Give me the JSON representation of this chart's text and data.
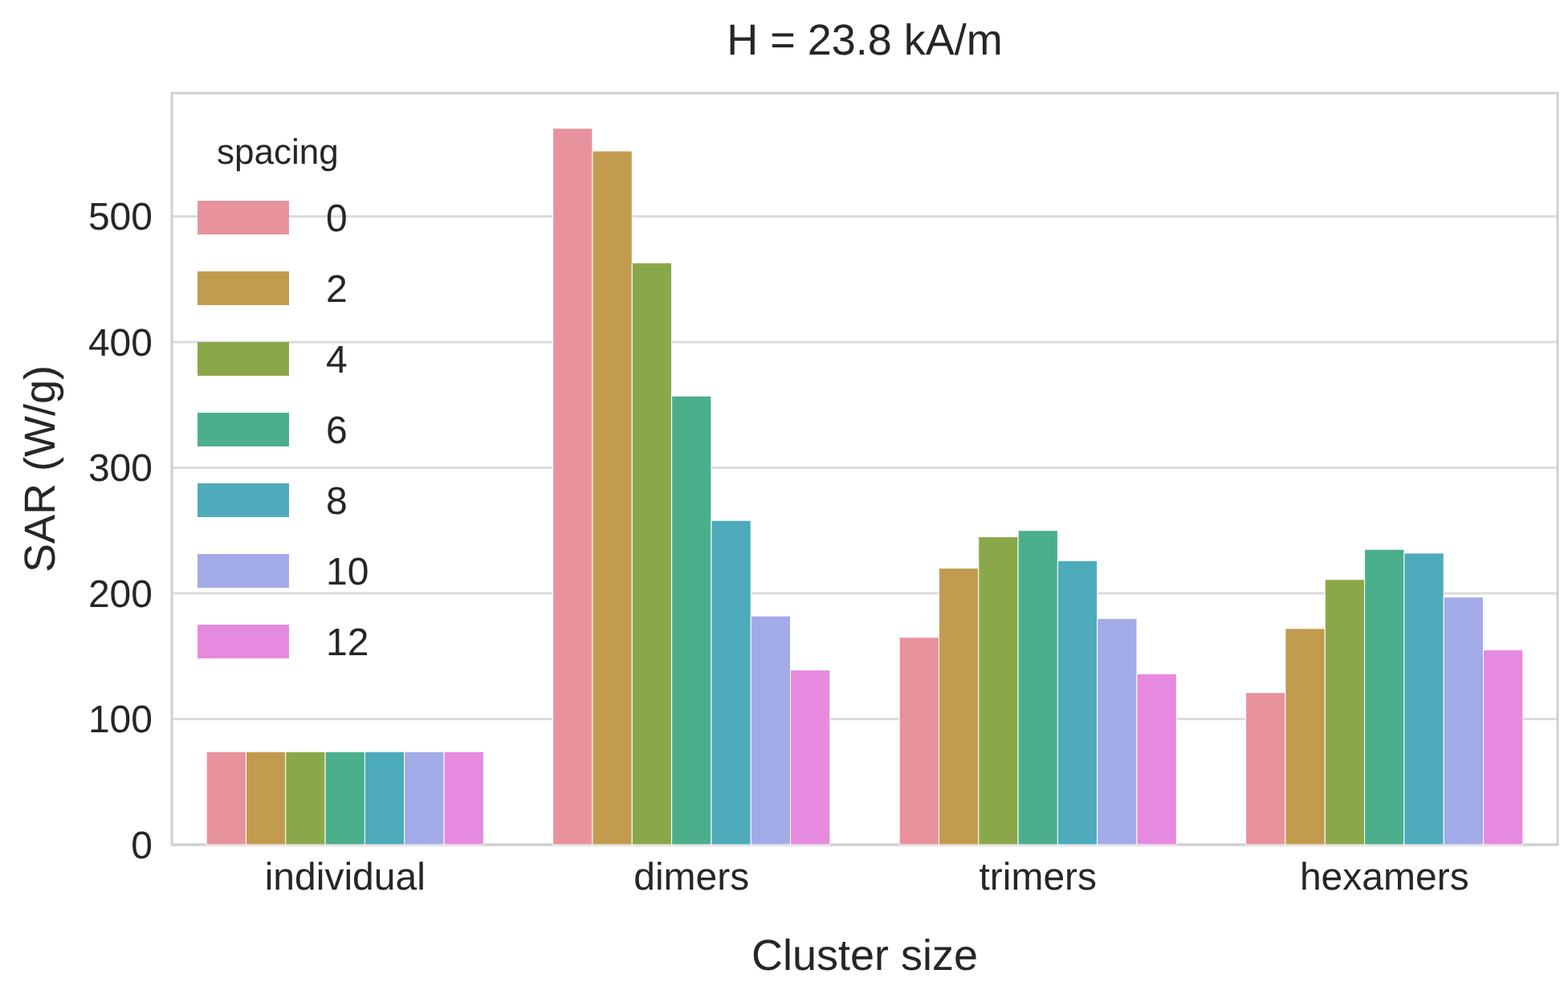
{
  "chart_data": {
    "type": "bar",
    "title": "H = 23.8 kA/m",
    "xlabel": "Cluster size",
    "ylabel": "SAR (W/g)",
    "legend_title": "spacing",
    "categories": [
      "individual",
      "dimers",
      "trimers",
      "hexamers"
    ],
    "series": [
      {
        "name": "0",
        "color": "#e8929e",
        "values": [
          74,
          570,
          165,
          121
        ]
      },
      {
        "name": "2",
        "color": "#c39b4f",
        "values": [
          74,
          552,
          220,
          172
        ]
      },
      {
        "name": "4",
        "color": "#8aa84a",
        "values": [
          74,
          463,
          245,
          211
        ]
      },
      {
        "name": "6",
        "color": "#4baf8c",
        "values": [
          74,
          357,
          250,
          235
        ]
      },
      {
        "name": "8",
        "color": "#4dabbb",
        "values": [
          74,
          258,
          226,
          232
        ]
      },
      {
        "name": "10",
        "color": "#a2abe7",
        "values": [
          74,
          182,
          180,
          197
        ]
      },
      {
        "name": "12",
        "color": "#e68ae0",
        "values": [
          74,
          139,
          136,
          155
        ]
      }
    ],
    "ylim": [
      0,
      598
    ],
    "yticks": [
      0,
      100,
      200,
      300,
      400,
      500
    ],
    "grid": "y",
    "legend": "top left"
  }
}
